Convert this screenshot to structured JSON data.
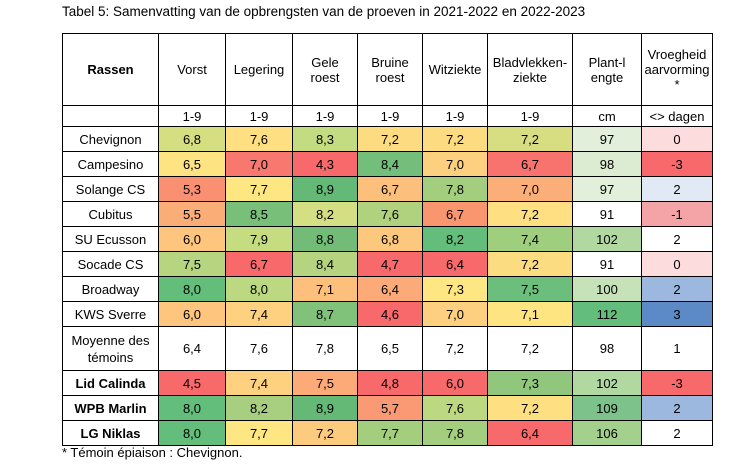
{
  "caption": "Tabel 5: Samenvatting van de opbrengsten van de proeven in 2021-2022 en 2022-2023",
  "footnote": "* Témoin épiaison : Chevignon.",
  "table": {
    "row_header": "Rassen",
    "columns": [
      {
        "label": "Vorst",
        "unit": "1-9"
      },
      {
        "label": "Legering",
        "unit": "1-9"
      },
      {
        "label": "Gele roest",
        "unit": "1-9"
      },
      {
        "label": "Bruine roest",
        "unit": "1-9"
      },
      {
        "label": "Witziekte",
        "unit": "1-9"
      },
      {
        "label": "Bladvlekken-ziekte",
        "unit": "1-9"
      },
      {
        "label": "Plant-lengte",
        "unit": "cm"
      },
      {
        "label": "Vroegheid aarvorming *",
        "unit": "<> dagen"
      }
    ],
    "rows": [
      {
        "name": "Chevignon",
        "bold": false,
        "values": [
          "6,8",
          "7,6",
          "8,3",
          "7,2",
          "7,2",
          "7,2",
          "97",
          "0"
        ],
        "colors": [
          "#d5df82",
          "#fedf81",
          "#c3db81",
          "#fddc81",
          "#fddc81",
          "#d7de82",
          "#e2efda",
          "#fcdcdc"
        ]
      },
      {
        "name": "Campesino",
        "bold": false,
        "values": [
          "6,5",
          "7,0",
          "4,3",
          "8,4",
          "7,0",
          "6,7",
          "98",
          "-3"
        ],
        "colors": [
          "#fee382",
          "#f8786f",
          "#f8696b",
          "#73be7a",
          "#fcd07e",
          "#f8736e",
          "#dcecd3",
          "#f8696b"
        ]
      },
      {
        "name": "Solange CS",
        "bold": false,
        "values": [
          "5,3",
          "7,7",
          "8,9",
          "6,7",
          "7,8",
          "7,0",
          "97",
          "2"
        ],
        "colors": [
          "#f99072",
          "#fee783",
          "#64b977",
          "#fcc07c",
          "#a3ce7e",
          "#fcae78",
          "#e2efda",
          "#e1e9f4"
        ]
      },
      {
        "name": "Cubitus",
        "bold": false,
        "values": [
          "5,5",
          "8,5",
          "8,2",
          "7,6",
          "6,7",
          "7,2",
          "91",
          "-1"
        ],
        "colors": [
          "#fbad77",
          "#78bf79",
          "#d3df82",
          "#b0d27f",
          "#f9956f",
          "#fedf81",
          "#ffffff",
          "#f4a4a6"
        ]
      },
      {
        "name": "SU Ecusson",
        "bold": false,
        "values": [
          "6,0",
          "7,9",
          "8,8",
          "6,8",
          "8,2",
          "7,4",
          "102",
          "2"
        ],
        "colors": [
          "#fdc57e",
          "#c6dc81",
          "#72bc78",
          "#fcc87e",
          "#63be7b",
          "#a0ce7f",
          "#b1d8a0",
          "#ffffff"
        ]
      },
      {
        "name": "Socade CS",
        "bold": false,
        "values": [
          "7,5",
          "6,7",
          "8,4",
          "4,7",
          "6,4",
          "7,2",
          "91",
          "0"
        ],
        "colors": [
          "#b7d580",
          "#f8696b",
          "#b6d480",
          "#f8696b",
          "#f8696b",
          "#fcdc81",
          "#ffffff",
          "#fcdcdc"
        ]
      },
      {
        "name": "Broadway",
        "bold": false,
        "values": [
          "8,0",
          "8,0",
          "7,1",
          "6,4",
          "7,3",
          "7,5",
          "100",
          "2"
        ],
        "colors": [
          "#63be7b",
          "#bcd881",
          "#fcc07c",
          "#fcaa78",
          "#fee783",
          "#6bbe7b",
          "#c5e2b9",
          "#9db8df"
        ]
      },
      {
        "name": "KWS Sverre",
        "bold": false,
        "values": [
          "6,0",
          "7,4",
          "8,7",
          "4,6",
          "7,0",
          "7,1",
          "112",
          "3"
        ],
        "colors": [
          "#fdc57e",
          "#fdd180",
          "#81c27b",
          "#f8696b",
          "#fcd07e",
          "#fee582",
          "#63be7b",
          "#5b8ac6"
        ]
      },
      {
        "name": "Moyenne des témoins",
        "bold": false,
        "values": [
          "6,4",
          "7,6",
          "7,8",
          "6,5",
          "7,2",
          "7,2",
          "98",
          "1"
        ],
        "colors": [
          "#ffffff",
          "#ffffff",
          "#ffffff",
          "#ffffff",
          "#ffffff",
          "#ffffff",
          "#ffffff",
          "#ffffff"
        ]
      },
      {
        "name": "Lid Calinda",
        "bold": true,
        "values": [
          "4,5",
          "7,4",
          "7,5",
          "4,8",
          "6,0",
          "7,3",
          "102",
          "-3"
        ],
        "colors": [
          "#f8696b",
          "#fdd180",
          "#fcaa78",
          "#f8696b",
          "#f8696b",
          "#91c67d",
          "#b1d8a0",
          "#f8696b"
        ]
      },
      {
        "name": "WPB Marlin",
        "bold": true,
        "values": [
          "8,0",
          "8,2",
          "8,9",
          "5,7",
          "7,6",
          "7,2",
          "109",
          "2"
        ],
        "colors": [
          "#63be7b",
          "#a7cf7f",
          "#64b977",
          "#f99a74",
          "#bcd881",
          "#fedf81",
          "#7cc28a",
          "#9db8df"
        ]
      },
      {
        "name": "LG Niklas",
        "bold": true,
        "values": [
          "8,0",
          "7,7",
          "7,2",
          "7,7",
          "7,8",
          "6,4",
          "106",
          "2"
        ],
        "colors": [
          "#63be7b",
          "#fee783",
          "#fdcb7e",
          "#a3ce7e",
          "#a3ce7e",
          "#f8696b",
          "#a3d08d",
          "#ffffff"
        ]
      }
    ]
  }
}
